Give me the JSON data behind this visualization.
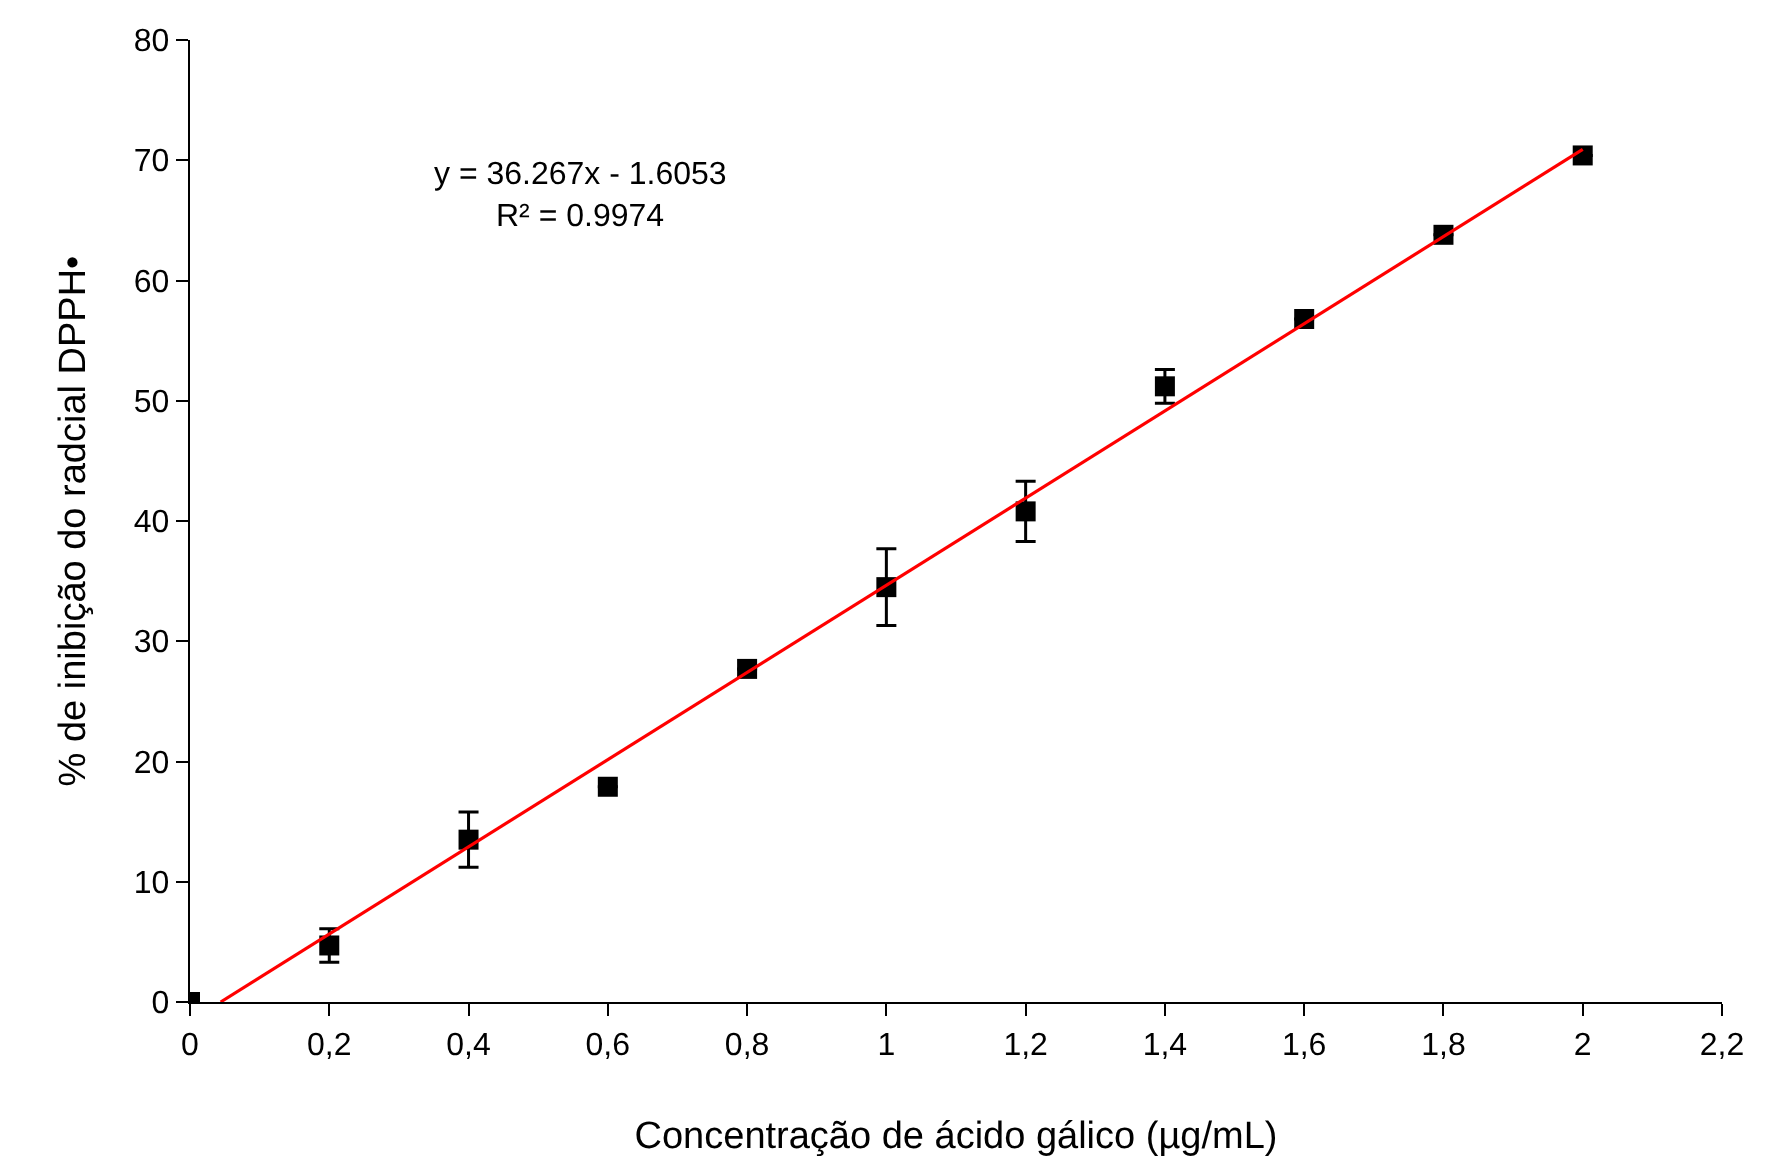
{
  "chart_data": {
    "type": "scatter",
    "xlabel": "Concentração de ácido gálico (µg/mL)",
    "ylabel": "% de inibição do radcial DPPH•",
    "annotations": [
      "y = 36.267x - 1.6053",
      "R² = 0.9974"
    ],
    "xlim": [
      0,
      2.2
    ],
    "ylim": [
      0,
      80
    ],
    "xticks": [
      0,
      {
        "value": 0.2,
        "label": "0,2"
      },
      {
        "value": 0.4,
        "label": "0,4"
      },
      {
        "value": 0.6,
        "label": "0,6"
      },
      {
        "value": 0.8,
        "label": "0,8"
      },
      1,
      {
        "value": 1.2,
        "label": "1,2"
      },
      {
        "value": 1.4,
        "label": "1,4"
      },
      {
        "value": 1.6,
        "label": "1,6"
      },
      {
        "value": 1.8,
        "label": "1,8"
      },
      2,
      {
        "value": 2.2,
        "label": "2,2"
      }
    ],
    "yticks": [
      0,
      10,
      20,
      30,
      40,
      50,
      60,
      70,
      80
    ],
    "series": [
      {
        "marker": "square",
        "color": "#000000",
        "x": [
          0,
          0.2,
          0.4,
          0.6,
          0.8,
          1.0,
          1.2,
          1.4,
          1.6,
          1.8,
          2.0
        ],
        "values": [
          0,
          4.7,
          13.5,
          17.9,
          27.7,
          34.5,
          40.8,
          51.2,
          56.8,
          63.8,
          70.4
        ],
        "errors": [
          null,
          1.4,
          2.3,
          null,
          null,
          3.2,
          2.5,
          1.4,
          null,
          null,
          null
        ]
      },
      {
        "type": "line",
        "marker": "none",
        "line_style": "solid",
        "color": "#ff0000",
        "x": [
          0.044,
          2.0
        ],
        "values": [
          0,
          70.9
        ]
      }
    ]
  }
}
